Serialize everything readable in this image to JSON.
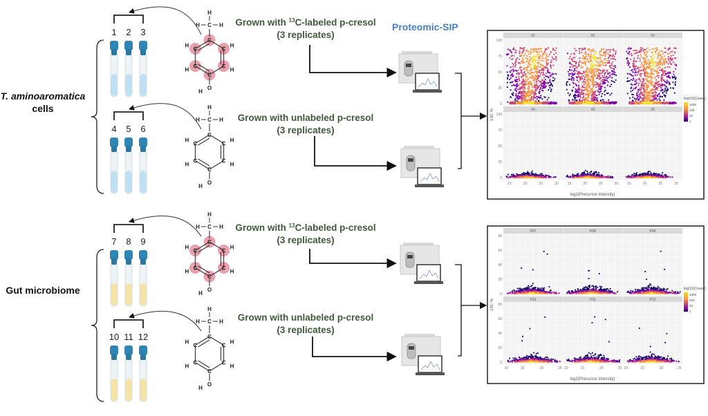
{
  "sections": [
    {
      "organism_line1": "T. aminoaromatica",
      "organism_line2": "cells",
      "groups": [
        {
          "replicates": [
            "1",
            "2",
            "3"
          ],
          "condition": "Grown with ",
          "isotope_sup": "13",
          "condition_rest": "C-labeled p-cresol",
          "replicate_note": "(3 replicates)",
          "labeled": true
        },
        {
          "replicates": [
            "4",
            "5",
            "6"
          ],
          "condition": "Grown with unlabeled p-cresol",
          "isotope_sup": "",
          "condition_rest": "",
          "replicate_note": "(3 replicates)",
          "labeled": false
        }
      ],
      "tube_liquid_color": "#bfe0f2",
      "plot": {
        "facets": [
          "01",
          "02",
          "03",
          "04",
          "05",
          "06"
        ],
        "x_ticks": [
          "15",
          "20",
          "25",
          "30"
        ],
        "y_ticks": [
          "0",
          "25",
          "50",
          "75",
          "100"
        ],
        "xlabel": "log2(Precursor intensity)",
        "ylabel": "13C %",
        "legend_title": "log10(Count)",
        "legend_ticks": [
          "1000",
          "100",
          "10",
          "1"
        ]
      }
    },
    {
      "organism_line1": "Gut microbiome",
      "organism_line2": "",
      "groups": [
        {
          "replicates": [
            "7",
            "8",
            "9"
          ],
          "condition": "Grown with ",
          "isotope_sup": "13",
          "condition_rest": "C-labeled p-cresol",
          "replicate_note": "(3 replicates)",
          "labeled": true
        },
        {
          "replicates": [
            "10",
            "11",
            "12"
          ],
          "condition": "Grown with unlabeled p-cresol",
          "isotope_sup": "",
          "condition_rest": "",
          "replicate_note": "(3 replicates)",
          "labeled": false
        }
      ],
      "tube_liquid_color": "#f5e4a6",
      "plot": {
        "facets": [
          "P07",
          "P08",
          "P09",
          "P10",
          "P11",
          "P12"
        ],
        "x_ticks": [
          "10",
          "15",
          "20",
          "25"
        ],
        "y_ticks": [
          "0",
          "20",
          "40",
          "60",
          "80"
        ],
        "xlabel": "log2(Precursor intensity)",
        "ylabel": "13C %",
        "legend_title": "log10(Count)",
        "legend_ticks": [
          "1000",
          "100",
          "10",
          "1"
        ]
      }
    }
  ],
  "method_label": "Proteomic-SIP",
  "molecule_atoms": {
    "carbon": "C",
    "hydrogen": "H",
    "oxygen": "O"
  },
  "colors": {
    "text_green": "#3f5a3a",
    "method_blue": "#4a7fbf",
    "label_highlight": "#e3899a",
    "tube_cap": "#2f86b4",
    "colormap": [
      "#1a0a6b",
      "#7e03a8",
      "#cc4778",
      "#f89540",
      "#f7e225"
    ]
  }
}
